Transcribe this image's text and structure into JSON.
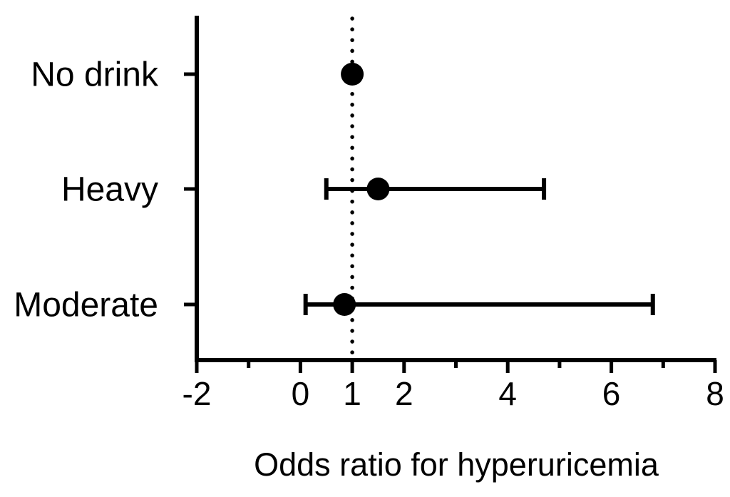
{
  "figure": {
    "background_color": "#ffffff",
    "ink_color": "#000000"
  },
  "chart_data": {
    "type": "scatter",
    "subtype": "forest-plot",
    "title": "",
    "xlabel": "Odds ratio for hyperuricemia",
    "ylabel": "",
    "xlim": [
      -2,
      8
    ],
    "x_major_ticks": [
      -2,
      0,
      1,
      2,
      4,
      6,
      8
    ],
    "x_minor_ticks": [
      -1,
      3,
      5,
      7
    ],
    "grid": false,
    "legend_position": "none",
    "reference_line": {
      "x": 1,
      "style": "dotted"
    },
    "categories": [
      "No drink",
      "Heavy",
      "Moderate"
    ],
    "points": [
      {
        "category": "No drink",
        "odds_ratio": 1.0,
        "ci_low": null,
        "ci_high": null
      },
      {
        "category": "Heavy",
        "odds_ratio": 1.5,
        "ci_low": 0.5,
        "ci_high": 4.7
      },
      {
        "category": "Moderate",
        "odds_ratio": 0.85,
        "ci_low": 0.1,
        "ci_high": 6.8
      }
    ],
    "marker": {
      "shape": "circle",
      "color": "#000000"
    }
  }
}
